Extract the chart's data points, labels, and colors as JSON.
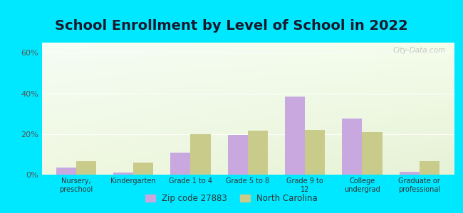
{
  "title": "School Enrollment by Level of School in 2022",
  "categories": [
    "Nursery,\npreschool",
    "Kindergarten",
    "Grade 1 to 4",
    "Grade 5 to 8",
    "Grade 9 to\n12",
    "College\nundergrad",
    "Graduate or\nprofessional"
  ],
  "zip_values": [
    3.5,
    1.0,
    11.0,
    19.5,
    38.5,
    27.5,
    1.5
  ],
  "nc_values": [
    6.5,
    6.0,
    20.0,
    21.5,
    22.0,
    21.0,
    6.5
  ],
  "zip_color": "#c9a8e0",
  "nc_color": "#c8cb8a",
  "ylim": [
    0,
    65
  ],
  "yticks": [
    0,
    20,
    40,
    60
  ],
  "ytick_labels": [
    "0%",
    "20%",
    "40%",
    "60%"
  ],
  "background_outer": "#00e8ff",
  "title_fontsize": 14,
  "legend_zip_label": "Zip code 27883",
  "legend_nc_label": "North Carolina",
  "watermark": "City-Data.com",
  "bar_width": 0.35
}
